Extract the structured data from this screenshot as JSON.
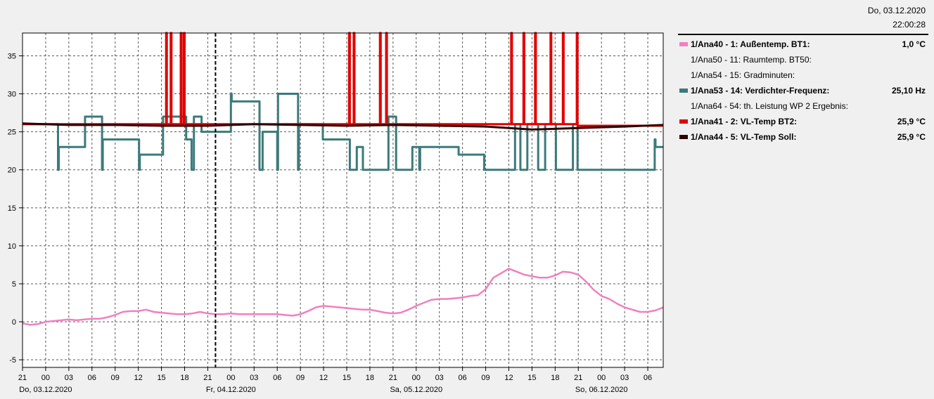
{
  "header": {
    "date": "Do, 03.12.2020",
    "time": "22:00:28"
  },
  "legend": [
    {
      "label": "1/Ana40 - 1: Außentemp. BT1:",
      "value": "1,0 °C",
      "color": "#f080c0",
      "bold": true
    },
    {
      "label": "1/Ana50 - 11: Raumtemp. BT50:",
      "value": "",
      "color": null,
      "bold": false
    },
    {
      "label": "1/Ana54 - 15: Gradminuten:",
      "value": "",
      "color": null,
      "bold": false
    },
    {
      "label": "1/Ana53 - 14: Verdichter-Frequenz:",
      "value": "25,10 Hz",
      "color": "#3c7a7a",
      "bold": true
    },
    {
      "label": "1/Ana64 - 54: th. Leistung WP 2 Ergebnis:",
      "value": "",
      "color": null,
      "bold": false
    },
    {
      "label": "1/Ana41 - 2: VL-Temp BT2:",
      "value": "25,9 °C",
      "color": "#e00000",
      "bold": true
    },
    {
      "label": "1/Ana44 - 5: VL-Temp Soll:",
      "value": "25,9 °C",
      "color": "#300000",
      "bold": true
    }
  ],
  "chart_data": {
    "type": "line",
    "x_unit": "hours since 02.12.2020 21:00",
    "xlim": [
      0,
      83
    ],
    "ylim": [
      -6,
      38
    ],
    "grid": true,
    "x_ticks": [
      {
        "x": 0,
        "label": "21"
      },
      {
        "x": 3,
        "label": "00"
      },
      {
        "x": 6,
        "label": "03"
      },
      {
        "x": 9,
        "label": "06"
      },
      {
        "x": 12,
        "label": "09"
      },
      {
        "x": 15,
        "label": "12"
      },
      {
        "x": 18,
        "label": "15"
      },
      {
        "x": 21,
        "label": "18"
      },
      {
        "x": 24,
        "label": "21"
      },
      {
        "x": 27,
        "label": "00"
      },
      {
        "x": 30,
        "label": "03"
      },
      {
        "x": 33,
        "label": "06"
      },
      {
        "x": 36,
        "label": "09"
      },
      {
        "x": 39,
        "label": "12"
      },
      {
        "x": 42,
        "label": "15"
      },
      {
        "x": 45,
        "label": "18"
      },
      {
        "x": 48,
        "label": "21"
      },
      {
        "x": 51,
        "label": "00"
      },
      {
        "x": 54,
        "label": "03"
      },
      {
        "x": 57,
        "label": "06"
      },
      {
        "x": 60,
        "label": "09"
      },
      {
        "x": 63,
        "label": "12"
      },
      {
        "x": 66,
        "label": "15"
      },
      {
        "x": 69,
        "label": "18"
      },
      {
        "x": 72,
        "label": "21"
      },
      {
        "x": 75,
        "label": "00"
      },
      {
        "x": 78,
        "label": "03"
      },
      {
        "x": 81,
        "label": "06"
      }
    ],
    "date_labels": [
      {
        "x": 3,
        "label": "Do, 03.12.2020"
      },
      {
        "x": 27,
        "label": "Fr, 04.12.2020"
      },
      {
        "x": 51,
        "label": "Sa, 05.12.2020"
      },
      {
        "x": 75,
        "label": "So, 06.12.2020"
      }
    ],
    "y_ticks": [
      -5,
      0,
      5,
      10,
      15,
      20,
      25,
      30,
      35
    ],
    "marker_x": 25,
    "series": [
      {
        "name": "1/Ana40 - 1: Außentemp. BT1:",
        "color": "#f080c0",
        "x": [
          0,
          1,
          2,
          3,
          4,
          5,
          6,
          7,
          8,
          9,
          10,
          11,
          12,
          13,
          14,
          15,
          16,
          17,
          18,
          19,
          20,
          21,
          22,
          23,
          24,
          25,
          26,
          27,
          28,
          29,
          30,
          31,
          32,
          33,
          34,
          35,
          36,
          37,
          38,
          39,
          40,
          41,
          42,
          43,
          44,
          45,
          46,
          47,
          48,
          49,
          50,
          51,
          52,
          53,
          54,
          55,
          56,
          57,
          58,
          59,
          60,
          61,
          62,
          63,
          64,
          65,
          66,
          67,
          68,
          69,
          70,
          71,
          72,
          73,
          74,
          75,
          76,
          77,
          78,
          79,
          80,
          81,
          82,
          83
        ],
        "y": [
          -0.2,
          -0.4,
          -0.3,
          0,
          0.1,
          0.2,
          0.3,
          0.2,
          0.3,
          0.4,
          0.4,
          0.6,
          0.9,
          1.3,
          1.4,
          1.4,
          1.6,
          1.3,
          1.2,
          1.1,
          1.0,
          1.0,
          1.1,
          1.3,
          1.1,
          1.0,
          1.0,
          1.1,
          1.0,
          1.0,
          1.0,
          1.0,
          1.0,
          1.0,
          0.9,
          0.8,
          1.0,
          1.4,
          1.9,
          2.1,
          2.0,
          1.9,
          1.8,
          1.7,
          1.6,
          1.6,
          1.4,
          1.2,
          1.1,
          1.2,
          1.6,
          2.1,
          2.5,
          2.9,
          3.0,
          3.0,
          3.1,
          3.2,
          3.4,
          3.5,
          4.3,
          5.8,
          6.4,
          7.0,
          6.6,
          6.2,
          6.0,
          5.8,
          5.8,
          6.1,
          6.6,
          6.5,
          6.2,
          5.3,
          4.2,
          3.4,
          3.0,
          2.4,
          1.9,
          1.6,
          1.3,
          1.3,
          1.5,
          1.9
        ]
      },
      {
        "name": "1/Ana53 - 14: Verdichter-Frequenz:",
        "color": "#3c7a7a",
        "x": [
          0,
          4.6,
          4.6,
          4.7,
          4.7,
          8.1,
          8.1,
          10.3,
          10.3,
          10.4,
          10.4,
          15.1,
          15.1,
          15.2,
          15.2,
          18.2,
          18.2,
          21.2,
          21.2,
          21.9,
          21.9,
          22.2,
          22.2,
          23.2,
          23.2,
          27.0,
          27.0,
          27.1,
          27.1,
          30.7,
          30.7,
          31.1,
          31.1,
          33.0,
          33.0,
          33.1,
          33.1,
          35.7,
          35.7,
          35.8,
          35.8,
          38.9,
          38.9,
          42.4,
          42.4,
          43.3,
          43.3,
          44.1,
          44.1,
          47.4,
          47.4,
          48.4,
          48.4,
          50.5,
          50.5,
          51.4,
          51.4,
          51.5,
          51.5,
          56.5,
          56.5,
          59.8,
          59.8,
          60.5,
          60.5,
          63.8,
          63.8,
          64.5,
          64.5,
          65.4,
          65.4,
          66.8,
          66.8,
          67.7,
          67.7,
          69.1,
          69.1,
          71.3,
          71.3,
          71.9,
          71.9,
          72.6,
          72.6,
          81.9,
          81.9,
          82.0,
          82.0,
          83
        ],
        "y": [
          26,
          26,
          20,
          20,
          23,
          23,
          27,
          27,
          20,
          20,
          24,
          24,
          20,
          20,
          22,
          22,
          27,
          27,
          24,
          24,
          20,
          20,
          27,
          27,
          25,
          25,
          30,
          30,
          29,
          29,
          20,
          20,
          25,
          25,
          20,
          20,
          30,
          30,
          20,
          20,
          26,
          26,
          24,
          24,
          20,
          20,
          23,
          23,
          20,
          20,
          27,
          27,
          20,
          20,
          23,
          23,
          20,
          20,
          23,
          23,
          22,
          22,
          20,
          20,
          20,
          20,
          26,
          26,
          20,
          20,
          26,
          26,
          20,
          20,
          26,
          26,
          20,
          20,
          26,
          26,
          20,
          20,
          20,
          20,
          24,
          24,
          23,
          23
        ]
      },
      {
        "name": "1/Ana41 - 2: VL-Temp BT2:",
        "color": "#e00000",
        "x": [
          0,
          18.6,
          18.6,
          18.7,
          18.7,
          19.2,
          19.2,
          19.3,
          19.3,
          20.5,
          20.5,
          20.6,
          20.6,
          20.9,
          20.9,
          21.0,
          21.0,
          42.3,
          42.3,
          42.4,
          42.4,
          42.9,
          42.9,
          43.0,
          43.0,
          46.3,
          46.3,
          46.4,
          46.4,
          47.1,
          47.1,
          47.2,
          47.2,
          63.3,
          63.3,
          63.4,
          63.4,
          64.9,
          64.9,
          65.0,
          65.0,
          66.4,
          66.4,
          66.5,
          66.5,
          68.4,
          68.4,
          68.5,
          68.5,
          70.0,
          70.0,
          70.1,
          70.1,
          71.8,
          71.8,
          71.9,
          71.9,
          83
        ],
        "y": [
          26,
          26,
          38,
          38,
          26,
          26,
          38,
          38,
          26,
          26,
          38,
          38,
          26,
          26,
          38,
          38,
          26,
          26,
          38,
          38,
          26,
          26,
          38,
          38,
          26,
          26,
          38,
          38,
          26,
          26,
          38,
          38,
          26,
          26,
          38,
          38,
          26,
          26,
          38,
          38,
          26,
          26,
          38,
          38,
          26,
          26,
          38,
          38,
          26,
          26,
          38,
          38,
          26,
          26,
          38,
          38,
          25.8,
          25.8
        ]
      },
      {
        "name": "1/Ana44 - 5: VL-Temp Soll:",
        "color": "#300000",
        "x": [
          0,
          6,
          12,
          18,
          24,
          30,
          36,
          42,
          48,
          54,
          60,
          66,
          72,
          78,
          83
        ],
        "y": [
          26.1,
          25.9,
          25.9,
          25.8,
          25.8,
          26.0,
          25.9,
          25.8,
          25.9,
          25.8,
          25.7,
          25.3,
          25.5,
          25.7,
          25.9
        ]
      }
    ]
  }
}
